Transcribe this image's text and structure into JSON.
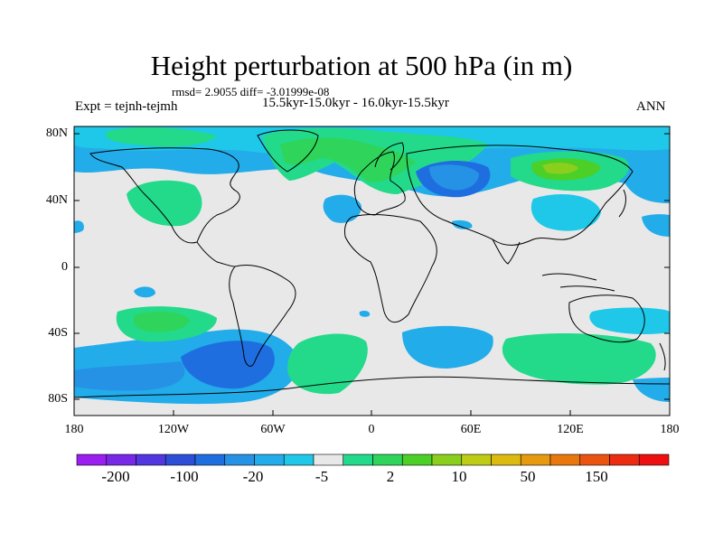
{
  "title": "Height perturbation at 500 hPa (in m)",
  "stats": "rmsd= 2.9055 diff= -3.01999e-08",
  "experiment": "Expt = tejnh-tejmh",
  "period": "15.5kyr-15.0kyr - 16.0kyr-15.5kyr",
  "season": "ANN",
  "lat_labels": [
    "80N",
    "40N",
    "0",
    "40S",
    "80S"
  ],
  "lon_labels": [
    "180",
    "120W",
    "60W",
    "0",
    "60E",
    "120E",
    "180"
  ],
  "colorbar": {
    "labels": [
      "-200",
      "-100",
      "-20",
      "-5",
      "2",
      "10",
      "50",
      "150"
    ],
    "colors": [
      "#9b1ff0",
      "#7a28e8",
      "#5236e0",
      "#2d4fd8",
      "#1f6ee0",
      "#2592e6",
      "#22acea",
      "#1fc8e8",
      "#e8e8e8",
      "#23d98a",
      "#2ed55a",
      "#4ccf26",
      "#8acf1e",
      "#bfcc16",
      "#dcba10",
      "#e69a0e",
      "#e8780e",
      "#ea5410",
      "#ec2c10",
      "#ee1010"
    ]
  },
  "colors": {
    "land_outline": "#000000",
    "neutral": "#e8e8e8"
  }
}
